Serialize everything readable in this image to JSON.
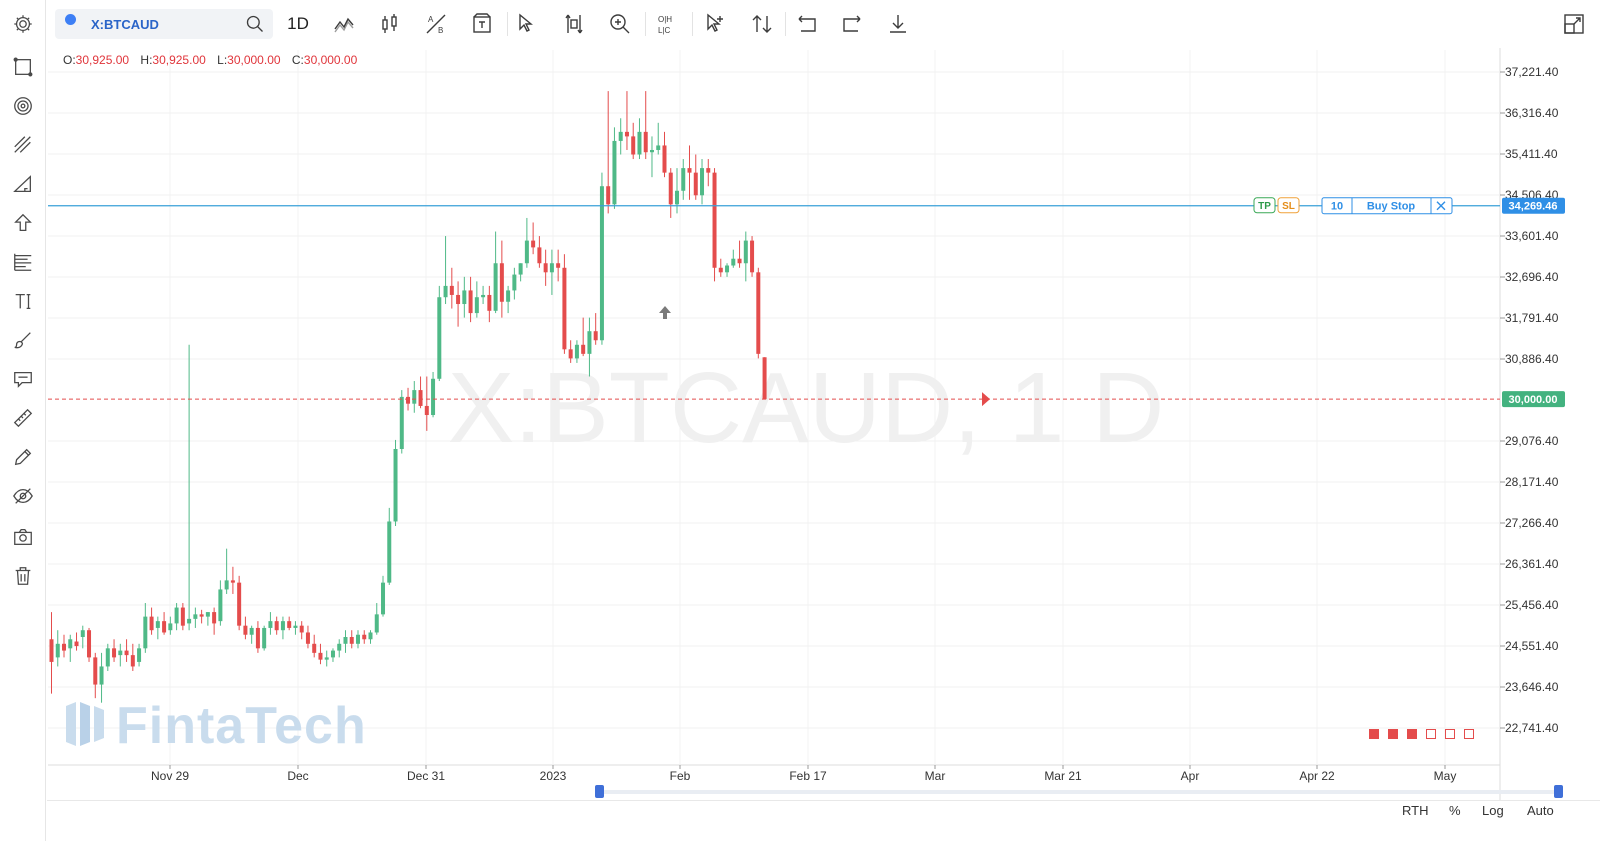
{
  "symbol": "X:BTCAUD",
  "interval": "1D",
  "watermark_symbol": "X:BTCAUD, 1 D",
  "brand": "FintaTech",
  "ohlc": {
    "o_label": "O:",
    "o": "30,925.00",
    "h_label": "H:",
    "h": "30,925.00",
    "l_label": "L:",
    "l": "30,000.00",
    "c_label": "C:",
    "c": "30,000.00"
  },
  "order": {
    "tp": "TP",
    "sl": "SL",
    "qty": "10",
    "type": "Buy Stop",
    "price_label": "34,269.46",
    "price": 34269.46
  },
  "last_price_label": "30,000.00",
  "last_price": 30000,
  "bottom": {
    "rth": "RTH",
    "percent": "%",
    "log": "Log",
    "auto": "Auto"
  },
  "toolbar_icons": [
    "settings-icon",
    "rectangle-icon",
    "target-icon",
    "parallel-lines-icon",
    "triangle-icon",
    "arrow-up-icon",
    "fibonacci-icon",
    "text-tool-icon",
    "brush-icon",
    "comment-icon",
    "ruler-icon",
    "pencil-icon",
    "eye-hide-icon",
    "camera-icon",
    "trash-icon"
  ],
  "colors": {
    "up": "#4fb987",
    "down": "#e44c4c",
    "accent": "#2196f3",
    "order_line": "#3aa0d8"
  },
  "chart_data": {
    "type": "candlestick",
    "title": "X:BTCAUD, 1 D",
    "y_ticks": [
      "37,221.40",
      "36,316.40",
      "35,411.40",
      "34,506.40",
      "33,601.40",
      "32,696.40",
      "31,791.40",
      "30,886.40",
      "29,076.40",
      "28,171.40",
      "27,266.40",
      "26,361.40",
      "25,456.40",
      "24,551.40",
      "23,646.40",
      "22,741.40"
    ],
    "x_ticks": [
      "Nov 29",
      "Dec",
      "Dec 31",
      "2023",
      "Feb",
      "Feb 17",
      "Mar",
      "Mar 21",
      "Apr",
      "Apr 22",
      "May"
    ],
    "ylim": [
      22000,
      38000
    ],
    "candles": [
      {
        "o": 24700,
        "h": 25300,
        "l": 23500,
        "c": 24200
      },
      {
        "o": 24300,
        "h": 24900,
        "l": 24100,
        "c": 24600
      },
      {
        "o": 24600,
        "h": 24800,
        "l": 24300,
        "c": 24450
      },
      {
        "o": 24500,
        "h": 24800,
        "l": 24200,
        "c": 24700
      },
      {
        "o": 24650,
        "h": 24850,
        "l": 24450,
        "c": 24550
      },
      {
        "o": 24750,
        "h": 25000,
        "l": 24500,
        "c": 24900
      },
      {
        "o": 24900,
        "h": 24950,
        "l": 24200,
        "c": 24300
      },
      {
        "o": 24300,
        "h": 24400,
        "l": 23400,
        "c": 23700
      },
      {
        "o": 23700,
        "h": 24400,
        "l": 23300,
        "c": 24100
      },
      {
        "o": 24100,
        "h": 24600,
        "l": 24000,
        "c": 24500
      },
      {
        "o": 24500,
        "h": 24700,
        "l": 24200,
        "c": 24300
      },
      {
        "o": 24350,
        "h": 24600,
        "l": 24100,
        "c": 24450
      },
      {
        "o": 24450,
        "h": 24700,
        "l": 24200,
        "c": 24350
      },
      {
        "o": 24350,
        "h": 24600,
        "l": 24000,
        "c": 24100
      },
      {
        "o": 24200,
        "h": 24600,
        "l": 24100,
        "c": 24500
      },
      {
        "o": 24500,
        "h": 25500,
        "l": 24400,
        "c": 25200
      },
      {
        "o": 25200,
        "h": 25400,
        "l": 24800,
        "c": 24900
      },
      {
        "o": 24950,
        "h": 25200,
        "l": 24700,
        "c": 25100
      },
      {
        "o": 25100,
        "h": 25300,
        "l": 24800,
        "c": 24850
      },
      {
        "o": 24900,
        "h": 25200,
        "l": 24800,
        "c": 25050
      },
      {
        "o": 25050,
        "h": 25500,
        "l": 24900,
        "c": 25400
      },
      {
        "o": 25400,
        "h": 25500,
        "l": 24900,
        "c": 25000
      },
      {
        "o": 25050,
        "h": 31200,
        "l": 24900,
        "c": 25150
      },
      {
        "o": 25150,
        "h": 25400,
        "l": 24950,
        "c": 25250
      },
      {
        "o": 25250,
        "h": 25350,
        "l": 25050,
        "c": 25200
      },
      {
        "o": 25200,
        "h": 25300,
        "l": 25000,
        "c": 25300
      },
      {
        "o": 25300,
        "h": 25400,
        "l": 24800,
        "c": 25050
      },
      {
        "o": 25100,
        "h": 26000,
        "l": 25000,
        "c": 25800
      },
      {
        "o": 25800,
        "h": 26700,
        "l": 25700,
        "c": 26000
      },
      {
        "o": 26000,
        "h": 26300,
        "l": 25700,
        "c": 25950
      },
      {
        "o": 25950,
        "h": 26100,
        "l": 24900,
        "c": 25000
      },
      {
        "o": 25000,
        "h": 25200,
        "l": 24700,
        "c": 24800
      },
      {
        "o": 24800,
        "h": 25000,
        "l": 24600,
        "c": 24950
      },
      {
        "o": 24950,
        "h": 25100,
        "l": 24400,
        "c": 24500
      },
      {
        "o": 24500,
        "h": 25000,
        "l": 24450,
        "c": 24950
      },
      {
        "o": 24950,
        "h": 25300,
        "l": 24800,
        "c": 25100
      },
      {
        "o": 25100,
        "h": 25200,
        "l": 24800,
        "c": 24900
      },
      {
        "o": 24900,
        "h": 25200,
        "l": 24700,
        "c": 25100
      },
      {
        "o": 25100,
        "h": 25200,
        "l": 24900,
        "c": 24950
      },
      {
        "o": 24950,
        "h": 25100,
        "l": 24800,
        "c": 25000
      },
      {
        "o": 25000,
        "h": 25100,
        "l": 24700,
        "c": 24850
      },
      {
        "o": 24850,
        "h": 25000,
        "l": 24500,
        "c": 24600
      },
      {
        "o": 24600,
        "h": 24800,
        "l": 24300,
        "c": 24400
      },
      {
        "o": 24400,
        "h": 24600,
        "l": 24150,
        "c": 24250
      },
      {
        "o": 24250,
        "h": 24450,
        "l": 24100,
        "c": 24300
      },
      {
        "o": 24300,
        "h": 24500,
        "l": 24200,
        "c": 24450
      },
      {
        "o": 24450,
        "h": 24700,
        "l": 24300,
        "c": 24600
      },
      {
        "o": 24600,
        "h": 24900,
        "l": 24400,
        "c": 24750
      },
      {
        "o": 24750,
        "h": 24900,
        "l": 24500,
        "c": 24600
      },
      {
        "o": 24600,
        "h": 24900,
        "l": 24500,
        "c": 24800
      },
      {
        "o": 24800,
        "h": 24900,
        "l": 24600,
        "c": 24700
      },
      {
        "o": 24700,
        "h": 24900,
        "l": 24600,
        "c": 24850
      },
      {
        "o": 24850,
        "h": 25500,
        "l": 24800,
        "c": 25250
      },
      {
        "o": 25250,
        "h": 26100,
        "l": 25200,
        "c": 25950
      },
      {
        "o": 25950,
        "h": 27600,
        "l": 25900,
        "c": 27300
      },
      {
        "o": 27300,
        "h": 29100,
        "l": 27200,
        "c": 28900
      },
      {
        "o": 28900,
        "h": 30200,
        "l": 28800,
        "c": 30050
      },
      {
        "o": 30050,
        "h": 30250,
        "l": 29750,
        "c": 29900
      },
      {
        "o": 29900,
        "h": 30400,
        "l": 29700,
        "c": 30200
      },
      {
        "o": 30200,
        "h": 30500,
        "l": 29800,
        "c": 29850
      },
      {
        "o": 29850,
        "h": 30500,
        "l": 29300,
        "c": 29650
      },
      {
        "o": 29650,
        "h": 30600,
        "l": 29600,
        "c": 30450
      },
      {
        "o": 30450,
        "h": 32500,
        "l": 30400,
        "c": 32250
      },
      {
        "o": 32250,
        "h": 33600,
        "l": 32100,
        "c": 32500
      },
      {
        "o": 32500,
        "h": 32900,
        "l": 32000,
        "c": 32300
      },
      {
        "o": 32300,
        "h": 32600,
        "l": 31600,
        "c": 32100
      },
      {
        "o": 32100,
        "h": 32700,
        "l": 31800,
        "c": 32400
      },
      {
        "o": 32400,
        "h": 32700,
        "l": 31700,
        "c": 31900
      },
      {
        "o": 31900,
        "h": 32600,
        "l": 31800,
        "c": 32250
      },
      {
        "o": 32250,
        "h": 32500,
        "l": 32100,
        "c": 32300
      },
      {
        "o": 32300,
        "h": 32500,
        "l": 31700,
        "c": 31950
      },
      {
        "o": 31950,
        "h": 33700,
        "l": 31900,
        "c": 33000
      },
      {
        "o": 33000,
        "h": 33500,
        "l": 31800,
        "c": 32150
      },
      {
        "o": 32150,
        "h": 32500,
        "l": 31900,
        "c": 32400
      },
      {
        "o": 32400,
        "h": 32900,
        "l": 32200,
        "c": 32750
      },
      {
        "o": 32750,
        "h": 33000,
        "l": 32600,
        "c": 33000
      },
      {
        "o": 33000,
        "h": 34000,
        "l": 32900,
        "c": 33500
      },
      {
        "o": 33500,
        "h": 33900,
        "l": 33200,
        "c": 33350
      },
      {
        "o": 33350,
        "h": 33600,
        "l": 32900,
        "c": 33000
      },
      {
        "o": 33000,
        "h": 33300,
        "l": 32500,
        "c": 32800
      },
      {
        "o": 32800,
        "h": 33300,
        "l": 32300,
        "c": 33000
      },
      {
        "o": 33000,
        "h": 33300,
        "l": 32600,
        "c": 32900
      },
      {
        "o": 32900,
        "h": 33200,
        "l": 31000,
        "c": 31100
      },
      {
        "o": 31100,
        "h": 31300,
        "l": 30800,
        "c": 30900
      },
      {
        "o": 30900,
        "h": 31300,
        "l": 30800,
        "c": 31200
      },
      {
        "o": 31200,
        "h": 31800,
        "l": 30950,
        "c": 31000
      },
      {
        "o": 31000,
        "h": 31800,
        "l": 30500,
        "c": 31500
      },
      {
        "o": 31500,
        "h": 31900,
        "l": 31200,
        "c": 31300
      },
      {
        "o": 31300,
        "h": 35000,
        "l": 31200,
        "c": 34700
      },
      {
        "o": 34700,
        "h": 36800,
        "l": 34100,
        "c": 34300
      },
      {
        "o": 34300,
        "h": 36000,
        "l": 34200,
        "c": 35700
      },
      {
        "o": 35700,
        "h": 36200,
        "l": 35400,
        "c": 35900
      },
      {
        "o": 35900,
        "h": 36800,
        "l": 35500,
        "c": 35800
      },
      {
        "o": 35800,
        "h": 36100,
        "l": 35300,
        "c": 35400
      },
      {
        "o": 35400,
        "h": 36200,
        "l": 35300,
        "c": 35900
      },
      {
        "o": 35900,
        "h": 36800,
        "l": 35300,
        "c": 35450
      },
      {
        "o": 35450,
        "h": 35800,
        "l": 34900,
        "c": 35500
      },
      {
        "o": 35500,
        "h": 36100,
        "l": 35400,
        "c": 35600
      },
      {
        "o": 35600,
        "h": 35900,
        "l": 34900,
        "c": 35000
      },
      {
        "o": 35000,
        "h": 35100,
        "l": 34000,
        "c": 34300
      },
      {
        "o": 34300,
        "h": 35100,
        "l": 34100,
        "c": 34600
      },
      {
        "o": 34600,
        "h": 35300,
        "l": 34400,
        "c": 35100
      },
      {
        "o": 35100,
        "h": 35600,
        "l": 34400,
        "c": 35000
      },
      {
        "o": 35000,
        "h": 35400,
        "l": 34400,
        "c": 34500
      },
      {
        "o": 34500,
        "h": 35300,
        "l": 34300,
        "c": 35100
      },
      {
        "o": 35100,
        "h": 35300,
        "l": 34700,
        "c": 35000
      },
      {
        "o": 35000,
        "h": 35100,
        "l": 32600,
        "c": 32900
      },
      {
        "o": 32900,
        "h": 33100,
        "l": 32700,
        "c": 32800
      },
      {
        "o": 32800,
        "h": 33000,
        "l": 32700,
        "c": 32950
      },
      {
        "o": 32950,
        "h": 33300,
        "l": 32900,
        "c": 33100
      },
      {
        "o": 33100,
        "h": 33500,
        "l": 32900,
        "c": 33000
      },
      {
        "o": 33000,
        "h": 33700,
        "l": 32600,
        "c": 33500
      },
      {
        "o": 33500,
        "h": 33600,
        "l": 32700,
        "c": 32800
      },
      {
        "o": 32800,
        "h": 32900,
        "l": 30900,
        "c": 31000
      },
      {
        "o": 30925,
        "h": 30925,
        "l": 30000,
        "c": 30000
      }
    ]
  }
}
